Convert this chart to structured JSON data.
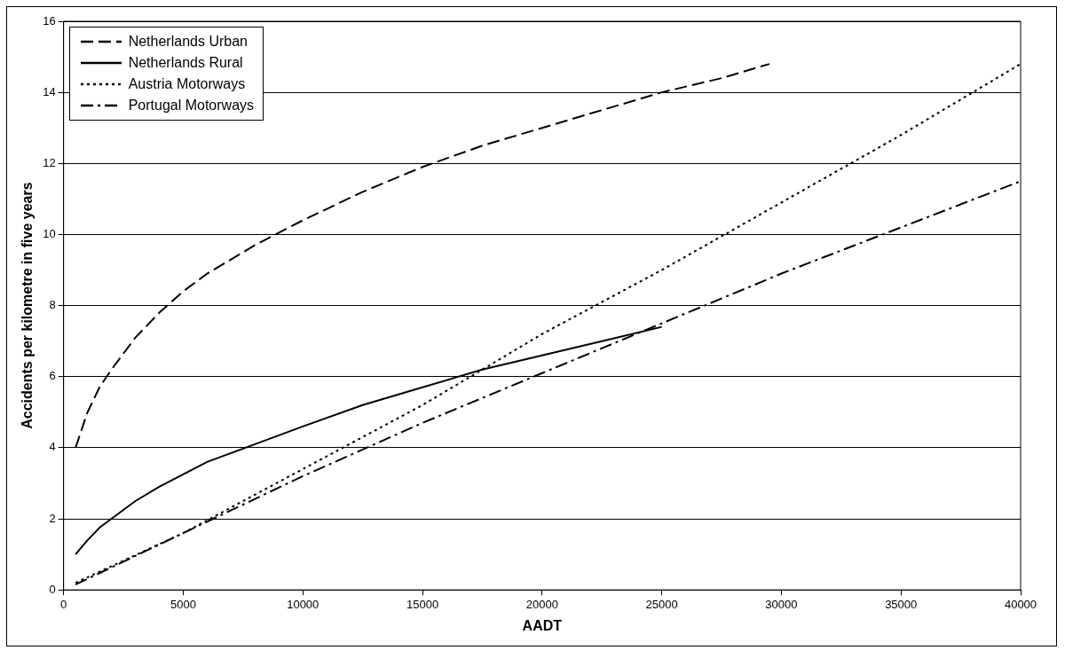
{
  "chart_data": {
    "type": "line",
    "xlabel": "AADT",
    "ylabel": "Accidents per kilometre in five years",
    "xlim": [
      0,
      40000
    ],
    "xticks": [
      0,
      5000,
      10000,
      15000,
      20000,
      25000,
      30000,
      35000,
      40000
    ],
    "ylim": [
      0,
      16
    ],
    "yticks": [
      0,
      2,
      4,
      6,
      8,
      10,
      12,
      14,
      16
    ],
    "grid": "y",
    "legend": "top left",
    "marker": "none",
    "series": [
      {
        "name": "Netherlands Urban",
        "color": "#000000",
        "line_style": "dashed",
        "x": [
          500,
          1000,
          1500,
          2000,
          3000,
          4000,
          5000,
          6000,
          8000,
          10000,
          12500,
          15000,
          17500,
          20000,
          22500,
          25000,
          27500,
          29500
        ],
        "values": [
          4.0,
          5.0,
          5.7,
          6.2,
          7.1,
          7.8,
          8.4,
          8.9,
          9.7,
          10.4,
          11.2,
          11.9,
          12.5,
          13.0,
          13.5,
          14.0,
          14.4,
          14.8
        ]
      },
      {
        "name": "Netherlands Rural",
        "color": "#000000",
        "line_style": "solid",
        "x": [
          500,
          1000,
          1500,
          2000,
          3000,
          4000,
          5000,
          6000,
          8000,
          10000,
          12500,
          15000,
          17500,
          20000,
          22500,
          25000
        ],
        "values": [
          1.0,
          1.4,
          1.75,
          2.0,
          2.5,
          2.9,
          3.25,
          3.6,
          4.1,
          4.6,
          5.2,
          5.7,
          6.2,
          6.6,
          7.0,
          7.4
        ]
      },
      {
        "name": "Austria Motorways",
        "color": "#000000",
        "line_style": "dotted",
        "x": [
          500,
          5000,
          10000,
          15000,
          20000,
          25000,
          30000,
          35000,
          40000
        ],
        "values": [
          0.2,
          1.6,
          3.4,
          5.2,
          7.2,
          9.0,
          10.9,
          12.8,
          14.8
        ]
      },
      {
        "name": "Portugal Motorways",
        "color": "#000000",
        "line_style": "dashdot",
        "x": [
          500,
          5000,
          10000,
          15000,
          20000,
          25000,
          30000,
          35000,
          40000
        ],
        "values": [
          0.15,
          1.6,
          3.2,
          4.7,
          6.1,
          7.5,
          8.9,
          10.2,
          11.5
        ]
      }
    ]
  }
}
